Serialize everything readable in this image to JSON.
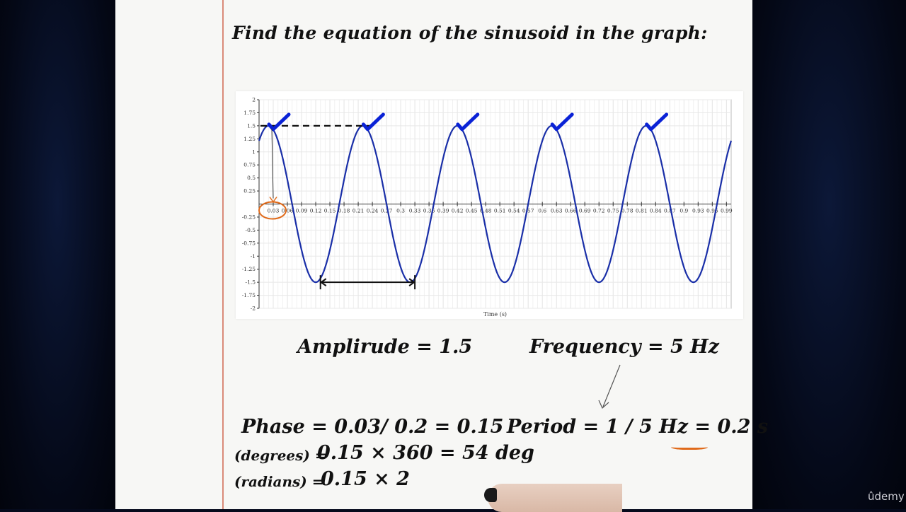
{
  "worksheet": {
    "title": "Find the equation of the sinusoid in the graph:",
    "amplitude": "Amplirude = 1.5",
    "frequency": "Frequency = 5 Hz",
    "phase": "Phase = 0.03/ 0.2 = 0.15",
    "period_prefix": "Period = 1 / 5 Hz = ",
    "period_value": "0.2 s",
    "degrees_label": "(degrees) =",
    "degrees_expr": "0.15 × 360 = 54 deg",
    "radians_label": "(radians) =",
    "radians_expr": "0.15 × 2"
  },
  "watermark": "ûdemy",
  "colors": {
    "curve": "#1a2fa8",
    "annotation_blue": "#0a22d6",
    "annotation_orange": "#e06a1a",
    "paper_rule": "#7ea6cc",
    "margin_rule": "#d98a78"
  },
  "chart_data": {
    "type": "line",
    "xlabel": "Time (s)",
    "ylabel": "",
    "xlim": [
      0,
      1
    ],
    "ylim": [
      -2,
      2
    ],
    "grid": true,
    "x_ticks": [
      "0.03",
      "0.06",
      "0.09",
      "0.12",
      "0.15",
      "0.18",
      "0.21",
      "0.24",
      "0.27",
      "0.3",
      "0.33",
      "0.36",
      "0.39",
      "0.42",
      "0.45",
      "0.48",
      "0.51",
      "0.54",
      "0.57",
      "0.6",
      "0.63",
      "0.66",
      "0.69",
      "0.72",
      "0.75",
      "0.78",
      "0.81",
      "0.84",
      "0.87",
      "0.9",
      "0.93",
      "0.96",
      "0.99"
    ],
    "y_ticks": [
      "2",
      "1.75",
      "1.5",
      "1.25",
      "1",
      "0.75",
      "0.5",
      "0.25",
      "-0.25",
      "-0.5",
      "-0.75",
      "-1",
      "-1.25",
      "-1.5",
      "-1.75",
      "-2"
    ],
    "series": [
      {
        "amplitude": 1.5,
        "frequency_hz": 5,
        "phase_rad": 0.9425,
        "x_start": 0,
        "x_end": 1
      }
    ],
    "peaks_marked": [
      0.03,
      0.23,
      0.43,
      0.63,
      0.83
    ],
    "peak_value": 1.5,
    "phase_marker_x": 0.03,
    "period_arrow": {
      "from": 0.13,
      "to": 0.33,
      "y": -1.5
    }
  }
}
